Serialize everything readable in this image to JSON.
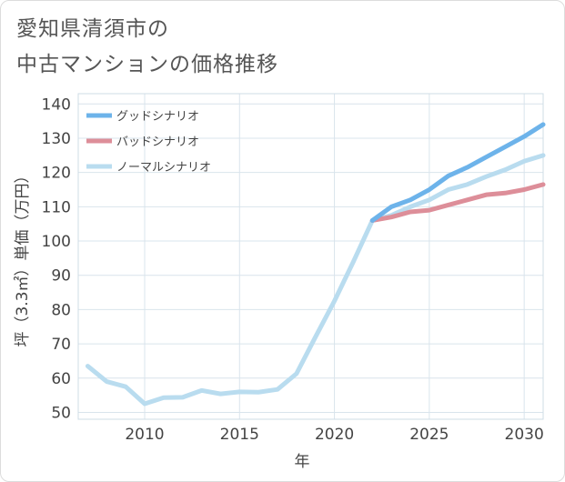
{
  "title": {
    "line1": "愛知県清須市の",
    "line2": "中古マンションの価格推移"
  },
  "chart_data": {
    "type": "line",
    "xlabel": "年",
    "ylabel": "坪（3.3㎡）単価（万円）",
    "xlim": [
      2006.5,
      2031
    ],
    "ylim": [
      48,
      143
    ],
    "xticks": [
      2010,
      2015,
      2020,
      2025,
      2030
    ],
    "yticks": [
      50,
      60,
      70,
      80,
      90,
      100,
      110,
      120,
      130,
      140
    ],
    "grid": true,
    "legend_position": "top-left",
    "series": [
      {
        "name": "グッドシナリオ",
        "color": "#6db3ea",
        "points": [
          [
            2022,
            106
          ],
          [
            2023,
            110
          ],
          [
            2024,
            112
          ],
          [
            2025,
            115
          ],
          [
            2026,
            119
          ],
          [
            2027,
            121.5
          ],
          [
            2028,
            124.5
          ],
          [
            2029,
            127.5
          ],
          [
            2030,
            130.5
          ],
          [
            2031,
            134
          ]
        ]
      },
      {
        "name": "バッドシナリオ",
        "color": "#dd8e99",
        "points": [
          [
            2022,
            106
          ],
          [
            2023,
            107
          ],
          [
            2024,
            108.5
          ],
          [
            2025,
            109
          ],
          [
            2026,
            110.5
          ],
          [
            2027,
            112
          ],
          [
            2028,
            113.5
          ],
          [
            2029,
            114
          ],
          [
            2030,
            115
          ],
          [
            2031,
            116.5
          ]
        ]
      },
      {
        "name": "ノーマルシナリオ",
        "color": "#b9dcef",
        "points": [
          [
            2007,
            63.5
          ],
          [
            2008,
            59
          ],
          [
            2009,
            57.5
          ],
          [
            2010,
            52.5
          ],
          [
            2011,
            54.3
          ],
          [
            2012,
            54.4
          ],
          [
            2013,
            56.4
          ],
          [
            2014,
            55.4
          ],
          [
            2015,
            56
          ],
          [
            2016,
            55.9
          ],
          [
            2017,
            56.7
          ],
          [
            2018,
            61.3
          ],
          [
            2019,
            72
          ],
          [
            2020,
            82.5
          ],
          [
            2021,
            94
          ],
          [
            2022,
            106
          ],
          [
            2023,
            107.5
          ],
          [
            2024,
            110
          ],
          [
            2025,
            112
          ],
          [
            2026,
            115
          ],
          [
            2027,
            116.5
          ],
          [
            2028,
            118.8
          ],
          [
            2029,
            120.8
          ],
          [
            2030,
            123.3
          ],
          [
            2031,
            125
          ]
        ]
      }
    ]
  }
}
